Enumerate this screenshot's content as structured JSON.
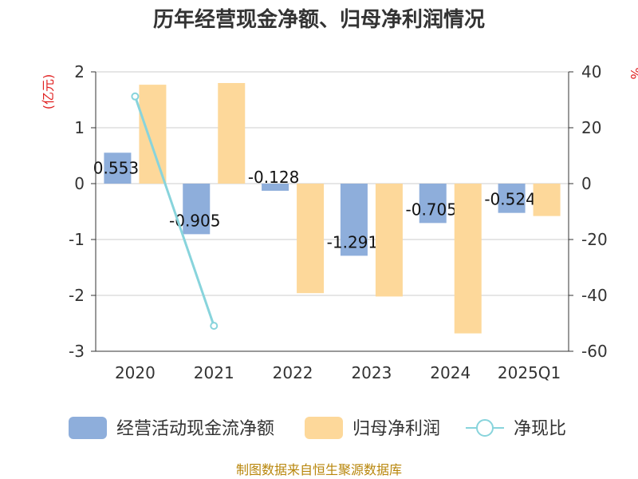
{
  "title": "历年经营现金净额、归母净利润情况",
  "source": "制图数据来自恒生聚源数据库",
  "chart_data": {
    "type": "bar",
    "categories": [
      "2020",
      "2021",
      "2022",
      "2023",
      "2024",
      "2025Q1"
    ],
    "left_axis": {
      "unit": "(亿元)",
      "ticks": [
        "2",
        "1",
        "0",
        "-1",
        "-2",
        "-3"
      ],
      "range": [
        -3,
        2
      ]
    },
    "right_axis": {
      "unit": "%",
      "ticks": [
        "40",
        "20",
        "0",
        "-20",
        "-40",
        "-60"
      ],
      "range": [
        -60,
        40
      ]
    },
    "series": [
      {
        "name": "经营活动现金流净额",
        "type": "bar",
        "axis": "left",
        "color": "#8eaedb",
        "values": [
          0.553,
          -0.905,
          -0.128,
          -1.291,
          -0.705,
          -0.524
        ],
        "labels": [
          "0.553",
          "-0.905",
          "-0.128",
          "-1.291",
          "-0.705",
          "-0.524"
        ]
      },
      {
        "name": "归母净利润",
        "type": "bar",
        "axis": "left",
        "color": "#fdd89a",
        "values": [
          1.77,
          1.8,
          -1.96,
          -2.02,
          -2.68,
          -0.58
        ]
      },
      {
        "name": "净现比",
        "type": "line",
        "axis": "right",
        "color": "#88d4dc",
        "values": [
          31.2,
          -50.9,
          null,
          null,
          null,
          null
        ]
      }
    ],
    "grid": true,
    "legend": "bottom"
  }
}
